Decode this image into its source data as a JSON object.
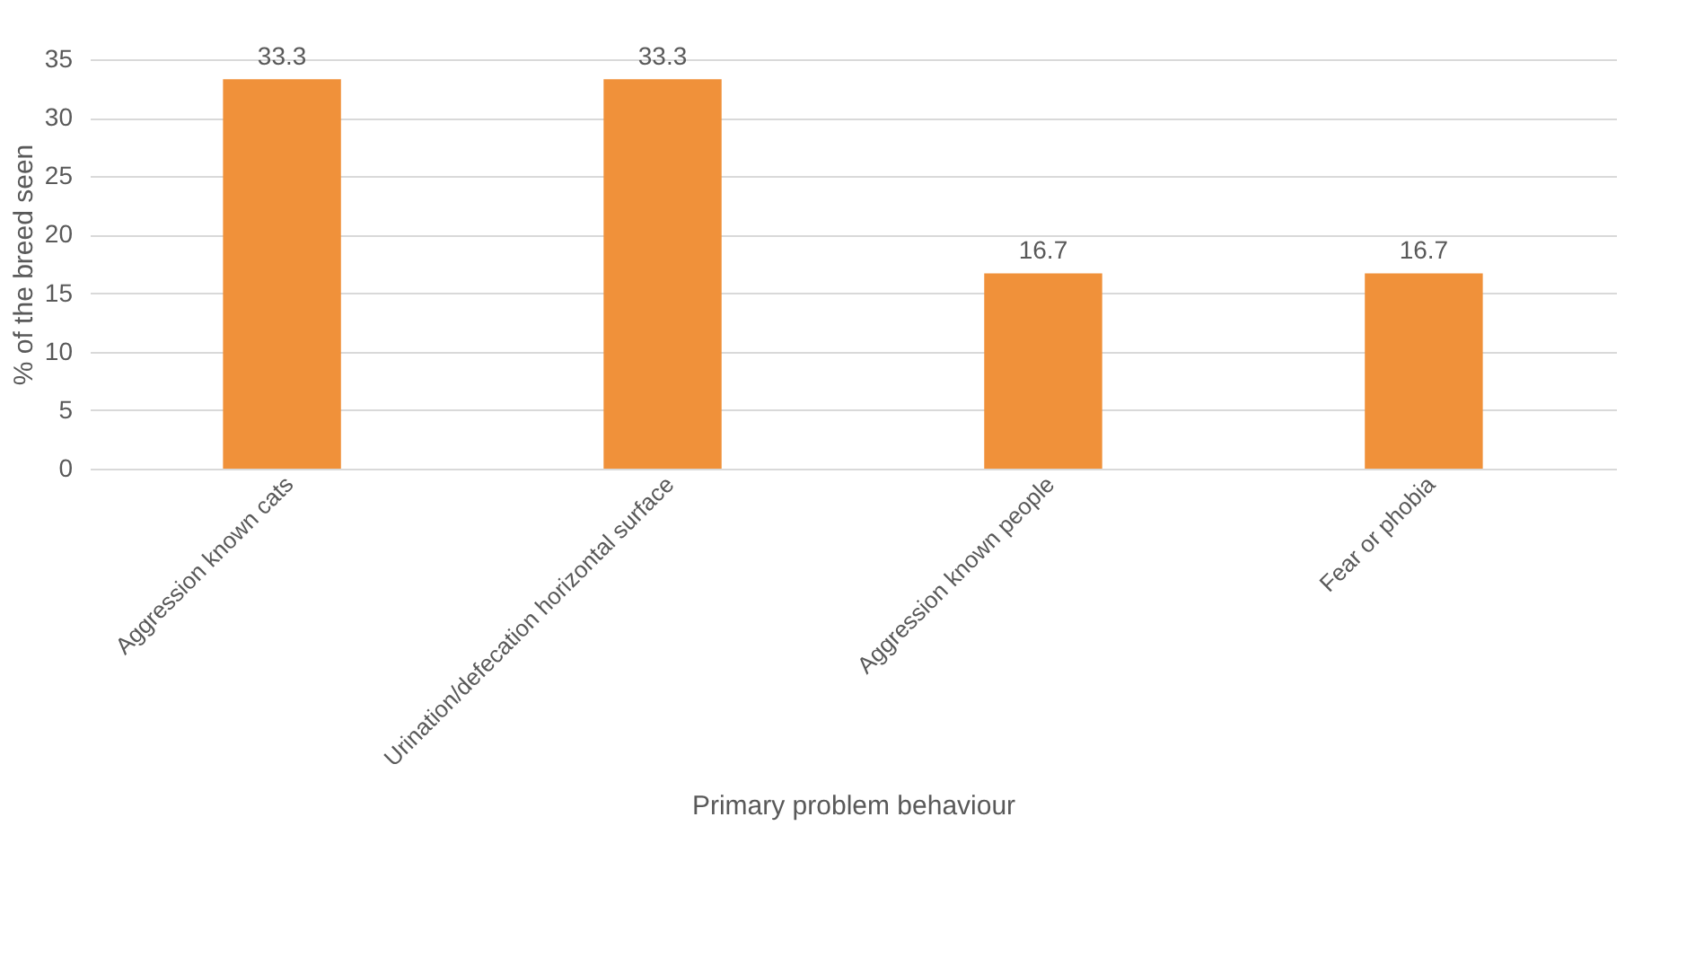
{
  "chart_data": {
    "type": "bar",
    "xlabel": "Primary problem behaviour",
    "ylabel": "% of the breed seen",
    "categories": [
      "Aggression known cats",
      "Urination/defecation horizontal surface",
      "Aggression known people",
      "Fear or phobia"
    ],
    "values": [
      33.3,
      33.3,
      16.7,
      16.7
    ],
    "color": "#f0913a",
    "ylim": [
      0,
      35
    ],
    "yticks": [
      0,
      5,
      10,
      15,
      20,
      25,
      30,
      35
    ],
    "grid": "y",
    "data_labels": true
  }
}
